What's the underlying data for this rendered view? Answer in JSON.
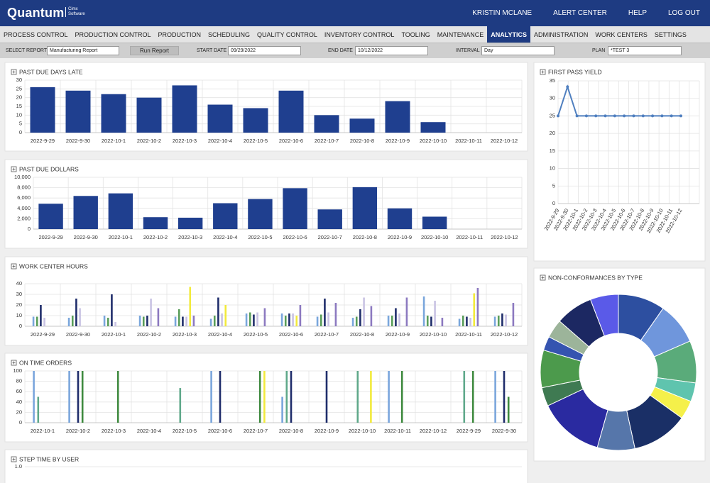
{
  "header": {
    "logo": "Quantum",
    "logo_sub": "Cimx Software",
    "links": [
      "KRISTIN MCLANE",
      "ALERT CENTER",
      "HELP",
      "LOG OUT"
    ]
  },
  "nav": {
    "items": [
      "PROCESS CONTROL",
      "PRODUCTION CONTROL",
      "PRODUCTION",
      "SCHEDULING",
      "QUALITY CONTROL",
      "INVENTORY CONTROL",
      "TOOLING",
      "MAINTENANCE",
      "ANALYTICS",
      "ADMINISTRATION",
      "WORK CENTERS",
      "SETTINGS"
    ],
    "active_index": 8
  },
  "toolbar": {
    "select_report": {
      "label": "SELECT REPORT",
      "value": "Manufacturing Report"
    },
    "run_button": "Run Report",
    "start_date": {
      "label": "START DATE",
      "value": "09/29/2022"
    },
    "end_date": {
      "label": "END DATE",
      "value": "10/12/2022"
    },
    "interval": {
      "label": "INTERVAL",
      "value": "Day"
    },
    "plan": {
      "label": "PLAN",
      "value": "*TEST 3"
    }
  },
  "chart_data": [
    {
      "type": "bar",
      "title": "PAST DUE DAYS LATE",
      "categories": [
        "2022-9-29",
        "2022-9-30",
        "2022-10-1",
        "2022-10-2",
        "2022-10-3",
        "2022-10-4",
        "2022-10-5",
        "2022-10-6",
        "2022-10-7",
        "2022-10-8",
        "2022-10-9",
        "2022-10-10",
        "2022-10-11",
        "2022-10-12"
      ],
      "values": [
        26,
        24,
        22,
        20,
        27,
        16,
        14,
        24,
        10,
        8,
        18,
        6,
        0,
        0
      ],
      "color": "#1f3f8f",
      "ylim": [
        0,
        30
      ],
      "yticks": [
        0,
        5,
        10,
        15,
        20,
        25,
        30
      ],
      "grid": true
    },
    {
      "type": "bar",
      "title": "PAST DUE DOLLARS",
      "categories": [
        "2022-9-29",
        "2022-9-30",
        "2022-10-1",
        "2022-10-2",
        "2022-10-3",
        "2022-10-4",
        "2022-10-5",
        "2022-10-6",
        "2022-10-7",
        "2022-10-8",
        "2022-10-9",
        "2022-10-10",
        "2022-10-11",
        "2022-10-12"
      ],
      "values": [
        4900,
        6400,
        6900,
        2300,
        2200,
        5000,
        5800,
        7900,
        3800,
        8100,
        4000,
        2400,
        0,
        0
      ],
      "color": "#1f3f8f",
      "ylim": [
        0,
        10000
      ],
      "yticks": [
        0,
        {
          "value": 2000,
          "label": "2,000"
        },
        {
          "value": 4000,
          "label": "4,000"
        },
        {
          "value": 6000,
          "label": "6,000"
        },
        {
          "value": 8000,
          "label": "8,000"
        },
        {
          "value": 10000,
          "label": "10,000"
        }
      ],
      "grid": true
    },
    {
      "type": "grouped_bar",
      "title": "WORK CENTER HOURS",
      "categories": [
        "2022-9-29",
        "2022-9-30",
        "2022-10-1",
        "2022-10-2",
        "2022-10-3",
        "2022-10-4",
        "2022-10-5",
        "2022-10-6",
        "2022-10-7",
        "2022-10-8",
        "2022-10-9",
        "2022-10-10",
        "2022-10-11",
        "2022-10-12"
      ],
      "series": [
        {
          "color": "#7aa6dc",
          "values": [
            9,
            8,
            10,
            10,
            9,
            7,
            12,
            12,
            9,
            8,
            10,
            28,
            7,
            9
          ]
        },
        {
          "color": "#5a9e5a",
          "values": [
            9,
            10,
            8,
            9,
            16,
            10,
            13,
            10,
            11,
            9,
            10,
            10,
            10,
            10
          ]
        },
        {
          "color": "#1f2d6b",
          "values": [
            20,
            26,
            30,
            10,
            9,
            27,
            11,
            12,
            26,
            16,
            17,
            9,
            9,
            12
          ]
        },
        {
          "color": "#c9c3e3",
          "values": [
            8,
            17,
            4,
            26,
            9,
            12,
            13,
            12,
            13,
            27,
            12,
            24,
            8,
            11
          ]
        },
        {
          "color": "#f2ea3c",
          "values": [
            0,
            0,
            0,
            0,
            37,
            20,
            0,
            10,
            0,
            0,
            0,
            0,
            31,
            0
          ]
        },
        {
          "color": "#8c79c0",
          "values": [
            0,
            0,
            0,
            17,
            10,
            0,
            17,
            20,
            22,
            19,
            27,
            8,
            36,
            22
          ]
        }
      ],
      "ylim": [
        0,
        40
      ],
      "yticks": [
        0,
        10,
        20,
        30,
        40
      ],
      "grid": true
    },
    {
      "type": "grouped_bar",
      "title": "ON TIME ORDERS",
      "categories": [
        "2022-10-1",
        "2022-10-2",
        "2022-10-3",
        "2022-10-4",
        "2022-10-5",
        "2022-10-6",
        "2022-10-7",
        "2022-10-8",
        "2022-10-9",
        "2022-10-10",
        "2022-10-11",
        "2022-10-12",
        "2022-9-29",
        "2022-9-30"
      ],
      "series": [
        {
          "color": "#7aa6dc",
          "values": [
            100,
            100,
            0,
            0,
            0,
            100,
            0,
            50,
            0,
            0,
            100,
            0,
            0,
            100
          ]
        },
        {
          "color": "#5fa88a",
          "values": [
            50,
            0,
            0,
            0,
            67,
            0,
            0,
            100,
            0,
            100,
            0,
            0,
            100,
            0
          ]
        },
        {
          "color": "#1f2d6b",
          "values": [
            0,
            100,
            0,
            0,
            0,
            100,
            0,
            100,
            100,
            0,
            0,
            0,
            0,
            100
          ]
        },
        {
          "color": "#3e8a3e",
          "values": [
            0,
            100,
            100,
            0,
            0,
            0,
            100,
            0,
            0,
            0,
            100,
            0,
            100,
            50
          ]
        },
        {
          "color": "#f2ea3c",
          "values": [
            0,
            0,
            0,
            0,
            0,
            0,
            100,
            0,
            0,
            100,
            0,
            0,
            0,
            0
          ]
        }
      ],
      "ylim": [
        0,
        100
      ],
      "yticks": [
        0,
        20,
        40,
        60,
        80,
        100
      ],
      "grid": true
    },
    {
      "type": "bar",
      "title": "STEP TIME BY USER",
      "ylim": [
        0,
        1
      ],
      "yticks": [
        {
          "value": 1,
          "label": "1.0"
        }
      ],
      "grid": true
    },
    {
      "type": "line",
      "title": "FIRST PASS YIELD",
      "categories": [
        "2022-9-29",
        "2022-9-30",
        "2022-10-1",
        "2022-10-2",
        "2022-10-3",
        "2022-10-4",
        "2022-10-5",
        "2022-10-6",
        "2022-10-7",
        "2022-10-8",
        "2022-10-9",
        "2022-10-10",
        "2022-10-11",
        "2022-10-12"
      ],
      "values": [
        25,
        33.3,
        25,
        25,
        25,
        25,
        25,
        25,
        25,
        25,
        25,
        25,
        25,
        25
      ],
      "color": "#4f7fbf",
      "ylim": [
        0,
        35
      ],
      "yticks": [
        0,
        5,
        10,
        15,
        20,
        25,
        30,
        35
      ],
      "grid": true
    },
    {
      "type": "donut",
      "title": "NON-CONFORMANCES BY TYPE",
      "values": [
        10,
        9,
        9,
        4,
        4,
        12,
        8,
        14,
        4,
        8,
        3,
        4,
        8,
        6
      ],
      "colors": [
        "#2d4fa0",
        "#6f96dc",
        "#5aab7a",
        "#5fc4ae",
        "#f5f04a",
        "#1a2f66",
        "#5676aa",
        "#2a2aa0",
        "#3f7a52",
        "#4c9a4c",
        "#3554b0",
        "#9cb49a",
        "#1c2862",
        "#5a5ae8"
      ]
    }
  ]
}
